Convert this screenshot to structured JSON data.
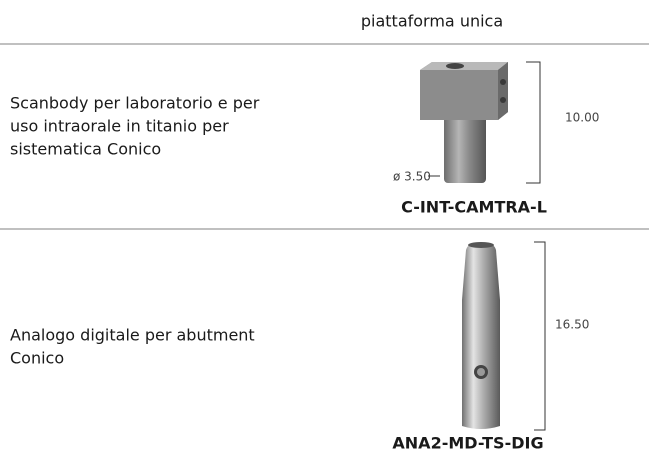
{
  "header": {
    "title": "piattaforma unica"
  },
  "rows": [
    {
      "description": [
        "Scanbody per laboratorio e per",
        "uso intraorale in titanio per",
        "sistematica Conico"
      ],
      "height": "10.00",
      "diameter": "ø 3.50",
      "code": "C-INT-CAMTRA-L"
    },
    {
      "description": [
        "Analogo digitale per abutment",
        "Conico"
      ],
      "height": "16.50",
      "code": "ANA2-MD-TS-DIG"
    }
  ]
}
